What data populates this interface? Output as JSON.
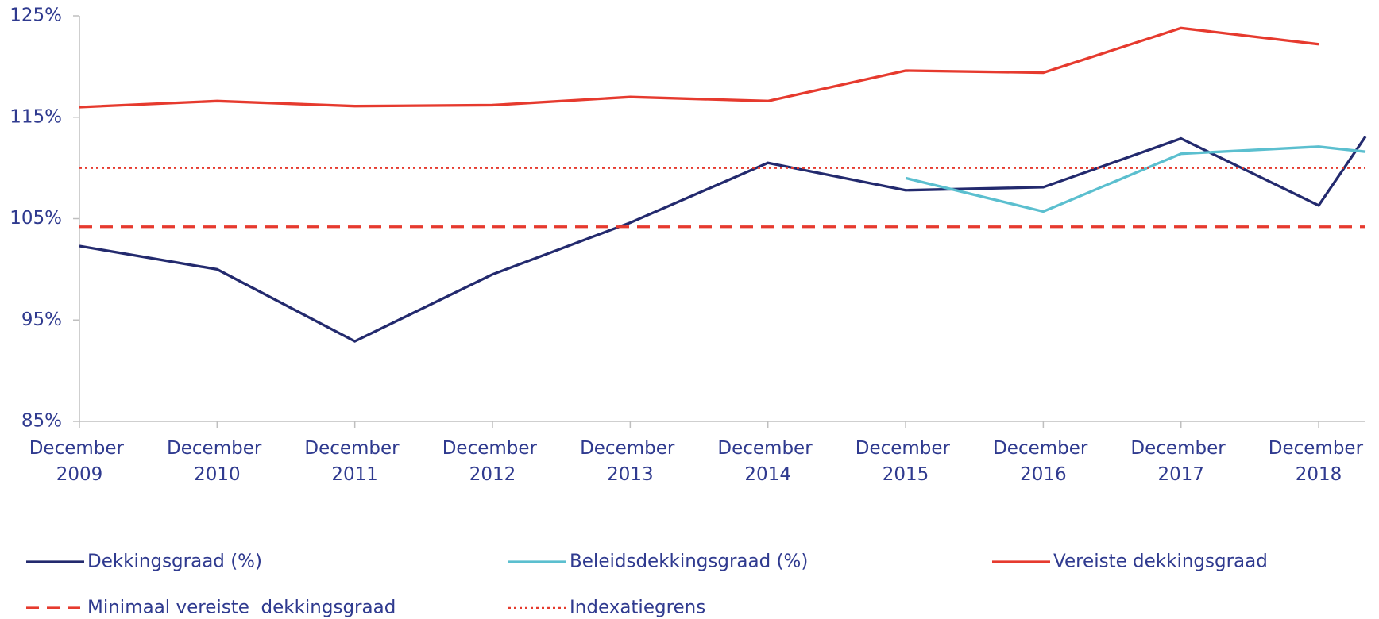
{
  "chart_data": {
    "type": "line",
    "x": [
      2009,
      2010,
      2011,
      2012,
      2013,
      2014,
      2015,
      2016,
      2017,
      2018,
      2018.34
    ],
    "xlim": [
      2009,
      2018.34
    ],
    "xticks": [
      {
        "value": 2009,
        "label": "December 2009"
      },
      {
        "value": 2010,
        "label": "December 2010"
      },
      {
        "value": 2011,
        "label": "December 2011"
      },
      {
        "value": 2012,
        "label": "December 2012"
      },
      {
        "value": 2013,
        "label": "December 2013"
      },
      {
        "value": 2014,
        "label": "December 2014"
      },
      {
        "value": 2015,
        "label": "December 2015"
      },
      {
        "value": 2016,
        "label": "December 2016"
      },
      {
        "value": 2017,
        "label": "December 2017"
      },
      {
        "value": 2018,
        "label": "December 2018"
      }
    ],
    "ylim": [
      85,
      125
    ],
    "yticks": [
      {
        "value": 85,
        "label": "85%"
      },
      {
        "value": 95,
        "label": "95%"
      },
      {
        "value": 105,
        "label": "105%"
      },
      {
        "value": 115,
        "label": "115%"
      },
      {
        "value": 125,
        "label": "125%"
      }
    ],
    "grid": false,
    "series": [
      {
        "name": "Dekkingsgraad (%)",
        "color": "#232a6e",
        "style": "solid",
        "values": [
          102.3,
          100.0,
          92.9,
          99.5,
          104.6,
          110.5,
          107.8,
          108.1,
          112.9,
          106.3,
          113.1
        ]
      },
      {
        "name": "Beleidsdekkingsgraad (%)",
        "color": "#5bbfcf",
        "style": "solid",
        "values": [
          null,
          null,
          null,
          null,
          null,
          null,
          109.0,
          105.7,
          111.4,
          112.1,
          111.6
        ]
      },
      {
        "name": "Vereiste dekkingsgraad",
        "color": "#e63a2e",
        "style": "solid",
        "values": [
          116.0,
          116.6,
          116.1,
          116.2,
          117.0,
          116.6,
          119.6,
          119.4,
          123.8,
          122.2,
          null
        ]
      },
      {
        "name": "Minimaal vereiste  dekkingsgraad",
        "color": "#e63a2e",
        "style": "dash",
        "values": [
          104.2,
          104.2,
          104.2,
          104.2,
          104.2,
          104.2,
          104.2,
          104.2,
          104.2,
          104.2,
          104.2
        ]
      },
      {
        "name": "Indexatiegrens",
        "color": "#e63a2e",
        "style": "dot",
        "values": [
          110.0,
          110.0,
          110.0,
          110.0,
          110.0,
          110.0,
          110.0,
          110.0,
          110.0,
          110.0,
          110.0
        ]
      }
    ]
  }
}
